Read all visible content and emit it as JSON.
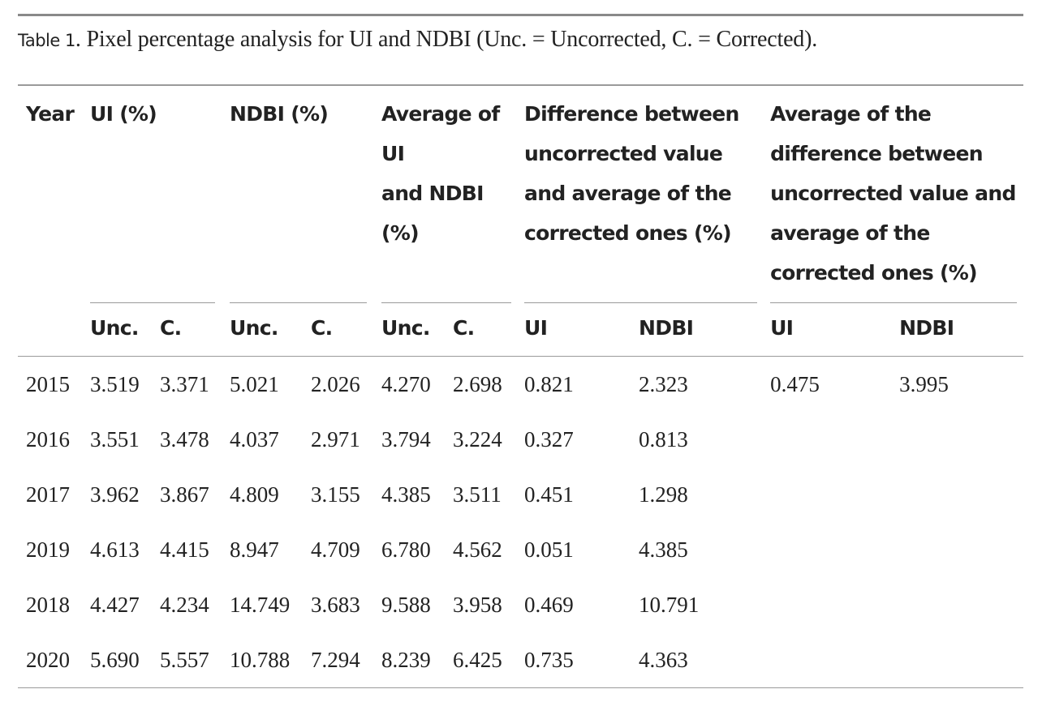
{
  "caption": {
    "label": "Table 1",
    "text": ". Pixel percentage analysis for UI and NDBI (Unc. = Uncorrected, C. = Corrected)."
  },
  "header": {
    "year": "Year",
    "ui": "UI (%)",
    "ndbi": "NDBI (%)",
    "average_lines": [
      "Average of",
      "UI",
      "and NDBI",
      "(%)"
    ],
    "difference_lines": [
      "Difference between",
      "uncorrected value",
      "and average of the",
      "corrected ones (%)"
    ],
    "avg_difference_lines": [
      "Average of the",
      "difference between",
      "uncorrected value and",
      "average of the",
      "corrected ones (%)"
    ],
    "sub": {
      "ui_unc": "Unc.",
      "ui_c": "C.",
      "ndbi_unc": "Unc.",
      "ndbi_c": "C.",
      "avg_unc": "Unc.",
      "avg_c": "C.",
      "diff_ui": "UI",
      "diff_ndbi": "NDBI",
      "avgdiff_ui": "UI",
      "avgdiff_ndbi": "NDBI"
    }
  },
  "rows": [
    {
      "year": "2015",
      "ui_unc": "3.519",
      "ui_c": "3.371",
      "ndbi_unc": "5.021",
      "ndbi_c": "2.026",
      "avg_unc": "4.270",
      "avg_c": "2.698",
      "diff_ui": "0.821",
      "diff_ndbi": "2.323",
      "avgdiff_ui": "0.475",
      "avgdiff_ndbi": "3.995"
    },
    {
      "year": "2016",
      "ui_unc": "3.551",
      "ui_c": "3.478",
      "ndbi_unc": "4.037",
      "ndbi_c": "2.971",
      "avg_unc": "3.794",
      "avg_c": "3.224",
      "diff_ui": "0.327",
      "diff_ndbi": "0.813",
      "avgdiff_ui": "",
      "avgdiff_ndbi": ""
    },
    {
      "year": "2017",
      "ui_unc": "3.962",
      "ui_c": "3.867",
      "ndbi_unc": "4.809",
      "ndbi_c": "3.155",
      "avg_unc": "4.385",
      "avg_c": "3.511",
      "diff_ui": "0.451",
      "diff_ndbi": "1.298",
      "avgdiff_ui": "",
      "avgdiff_ndbi": ""
    },
    {
      "year": "2019",
      "ui_unc": "4.613",
      "ui_c": "4.415",
      "ndbi_unc": "8.947",
      "ndbi_c": "4.709",
      "avg_unc": "6.780",
      "avg_c": "4.562",
      "diff_ui": "0.051",
      "diff_ndbi": "4.385",
      "avgdiff_ui": "",
      "avgdiff_ndbi": ""
    },
    {
      "year": "2018",
      "ui_unc": "4.427",
      "ui_c": "4.234",
      "ndbi_unc": "14.749",
      "ndbi_c": "3.683",
      "avg_unc": "9.588",
      "avg_c": "3.958",
      "diff_ui": "0.469",
      "diff_ndbi": "10.791",
      "avgdiff_ui": "",
      "avgdiff_ndbi": ""
    },
    {
      "year": "2020",
      "ui_unc": "5.690",
      "ui_c": "5.557",
      "ndbi_unc": "10.788",
      "ndbi_c": "7.294",
      "avg_unc": "8.239",
      "avg_c": "6.425",
      "diff_ui": "0.735",
      "diff_ndbi": "4.363",
      "avgdiff_ui": "",
      "avgdiff_ndbi": ""
    }
  ]
}
